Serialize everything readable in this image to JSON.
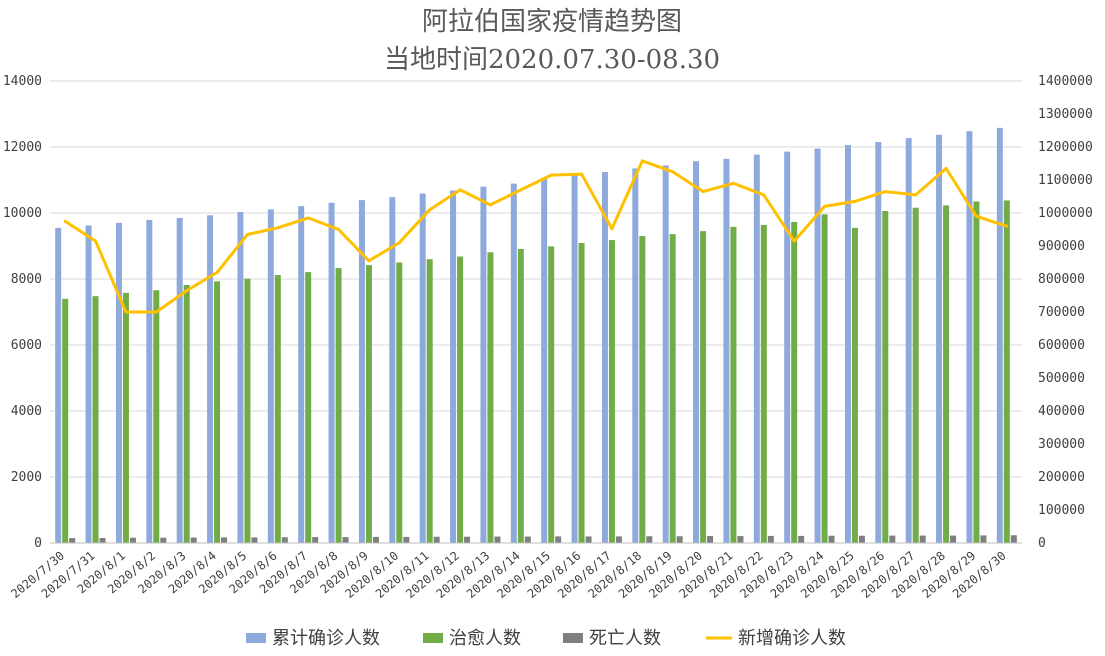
{
  "chart_data": {
    "type": "bar",
    "title": "阿拉伯国家疫情趋势图",
    "subtitle": "当地时间2020.07.30-08.30",
    "categories": [
      "2020/7/30",
      "2020/7/31",
      "2020/8/1",
      "2020/8/2",
      "2020/8/3",
      "2020/8/4",
      "2020/8/5",
      "2020/8/6",
      "2020/8/7",
      "2020/8/8",
      "2020/8/9",
      "2020/8/10",
      "2020/8/11",
      "2020/8/12",
      "2020/8/13",
      "2020/8/14",
      "2020/8/15",
      "2020/8/16",
      "2020/8/17",
      "2020/8/18",
      "2020/8/19",
      "2020/8/20",
      "2020/8/21",
      "2020/8/22",
      "2020/8/23",
      "2020/8/24",
      "2020/8/25",
      "2020/8/26",
      "2020/8/27",
      "2020/8/28",
      "2020/8/29",
      "2020/8/30"
    ],
    "y_left": {
      "ylim": [
        0,
        14000
      ],
      "ticks": [
        0,
        2000,
        4000,
        6000,
        8000,
        10000,
        12000,
        14000
      ]
    },
    "y_right": {
      "ylim": [
        0,
        1400000
      ],
      "ticks": [
        0,
        100000,
        200000,
        300000,
        400000,
        500000,
        600000,
        700000,
        800000,
        900000,
        1000000,
        1100000,
        1200000,
        1300000,
        1400000
      ]
    },
    "series": [
      {
        "name": "累计确诊人数",
        "kind": "bar",
        "axis": "left",
        "color": "#8EA9DB",
        "values": [
          9550,
          9620,
          9700,
          9790,
          9850,
          9930,
          10030,
          10110,
          10210,
          10310,
          10390,
          10480,
          10590,
          10680,
          10800,
          10890,
          11070,
          11150,
          11240,
          11350,
          11440,
          11570,
          11640,
          11770,
          11860,
          11950,
          12060,
          12150,
          12270,
          12370,
          12480,
          12580
        ]
      },
      {
        "name": "治愈人数",
        "kind": "bar",
        "axis": "left",
        "color": "#70AD47",
        "values": [
          7400,
          7480,
          7580,
          7660,
          7820,
          7930,
          8010,
          8120,
          8210,
          8330,
          8420,
          8500,
          8600,
          8680,
          8810,
          8910,
          8990,
          9090,
          9180,
          9300,
          9360,
          9450,
          9580,
          9640,
          9730,
          9960,
          9550,
          10060,
          10160,
          10230,
          10350,
          10380
        ]
      },
      {
        "name": "死亡人数",
        "kind": "bar",
        "axis": "left",
        "color": "#7F7F7F",
        "values": [
          150,
          150,
          160,
          160,
          165,
          170,
          170,
          175,
          180,
          180,
          185,
          185,
          190,
          190,
          195,
          195,
          200,
          200,
          200,
          205,
          205,
          210,
          210,
          215,
          215,
          220,
          220,
          225,
          225,
          225,
          230,
          235
        ]
      },
      {
        "name": "新增确诊人数",
        "kind": "line",
        "axis": "right",
        "color": "#FFC000",
        "values": [
          975000,
          915000,
          700000,
          700000,
          765000,
          820000,
          935000,
          955000,
          985000,
          950000,
          855000,
          910000,
          1010000,
          1070000,
          1025000,
          1070000,
          1115000,
          1118000,
          952000,
          1158000,
          1125000,
          1065000,
          1090000,
          1055000,
          915000,
          1020000,
          1035000,
          1065000,
          1055000,
          1135000,
          990000,
          960000
        ]
      }
    ],
    "legend_position": "bottom",
    "grid": true
  }
}
